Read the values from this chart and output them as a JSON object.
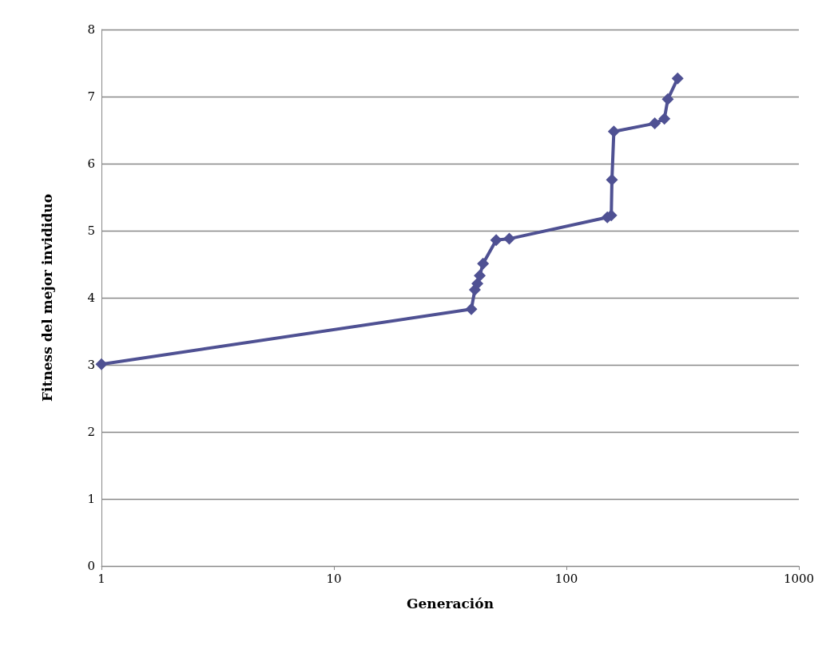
{
  "chart_data": {
    "type": "line",
    "xlabel": "Generación",
    "ylabel": "Fitness del mejor invididuo",
    "x": [
      1,
      39,
      40.4,
      41.4,
      42.4,
      43.8,
      49.9,
      56.8,
      150,
      156,
      157,
      160,
      240,
      264,
      273,
      301
    ],
    "series": [
      {
        "color": "#4f5193",
        "values": [
          3.01,
          3.83,
          4.12,
          4.21,
          4.33,
          4.51,
          4.86,
          4.88,
          5.2,
          5.23,
          5.76,
          6.48,
          6.6,
          6.67,
          6.96,
          7.27
        ]
      }
    ],
    "log": "x",
    "xlim": [
      1,
      1000
    ],
    "xticks": [
      1,
      10,
      100,
      1000
    ],
    "ylim": [
      0,
      8
    ],
    "yticks": [
      0,
      1,
      2,
      3,
      4,
      5,
      6,
      7,
      8
    ],
    "grid": "y",
    "marker": "diamond",
    "line_style": "solid"
  }
}
